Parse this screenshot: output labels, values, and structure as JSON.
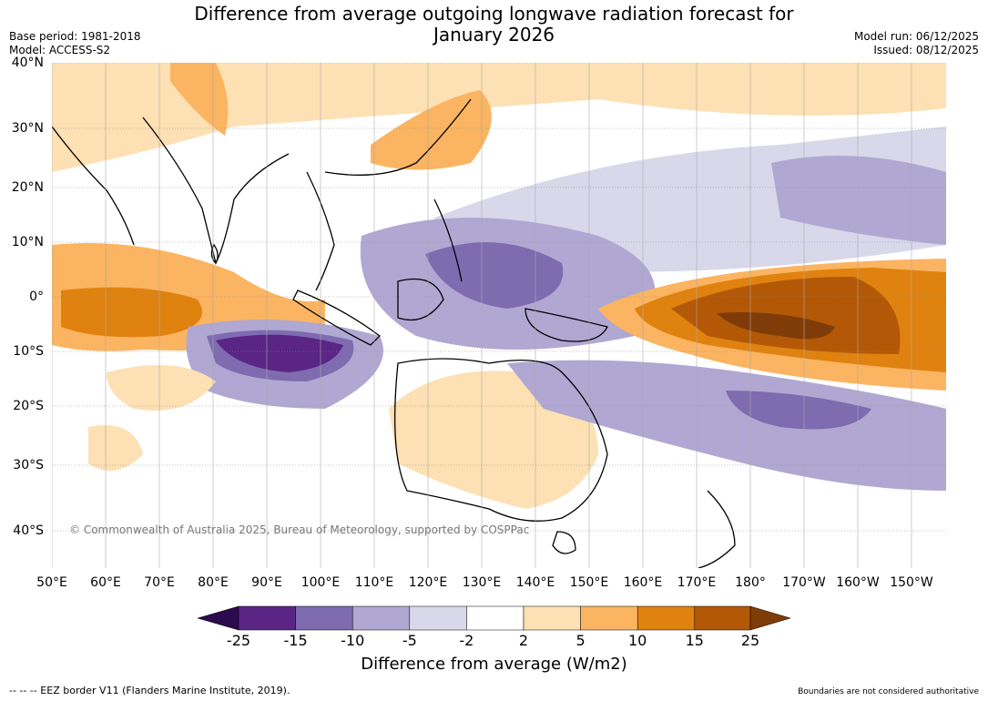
{
  "title": "Difference from average outgoing longwave radiation forecast for\nJanuary 2026",
  "title_line1": "Difference from average outgoing longwave radiation forecast for",
  "title_line2": "January 2026",
  "meta": {
    "base_period": "Base period: 1981-2018",
    "model": "Model: ACCESS-S2",
    "model_run": "Model run: 06/12/2025",
    "issued": "Issued: 08/12/2025"
  },
  "map": {
    "lat_labels": [
      "40°N",
      "30°N",
      "20°N",
      "10°N",
      "0°",
      "10°S",
      "20°S",
      "30°S",
      "40°S"
    ],
    "lon_labels": [
      "50°E",
      "60°E",
      "70°E",
      "80°E",
      "90°E",
      "100°E",
      "110°E",
      "120°E",
      "130°E",
      "140°E",
      "150°E",
      "160°E",
      "170°E",
      "180°",
      "170°W",
      "160°W",
      "150°W"
    ],
    "copyright": "© Commonwealth of Australia 2025, Bureau of Meteorology, supported by COSPPac"
  },
  "colorbar": {
    "ticks": [
      "-25",
      "-15",
      "-10",
      "-5",
      "-2",
      "2",
      "5",
      "10",
      "15",
      "25"
    ],
    "colors": [
      "#2d0a4e",
      "#5a2585",
      "#7e6bb0",
      "#b0a8d2",
      "#d8d8ea",
      "#ffffff",
      "#fde0b3",
      "#fbb461",
      "#e0820f",
      "#b35806",
      "#7f3b08"
    ],
    "label": "Difference from average (W/m2)"
  },
  "footer": {
    "eez": "--  --  -- EEZ border V11 (Flanders Marine Institute, 2019).",
    "boundaries": "Boundaries are not considered authoritative"
  }
}
